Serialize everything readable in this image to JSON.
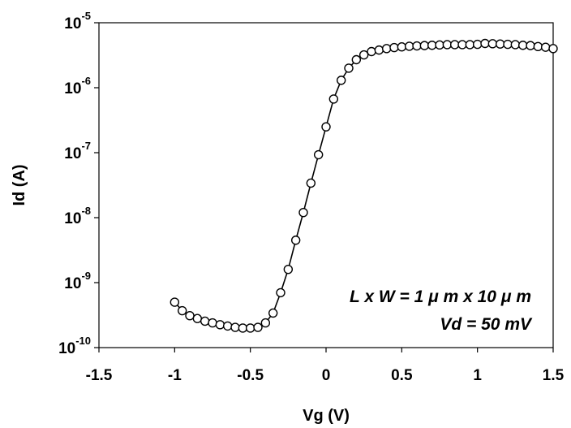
{
  "chart_data": {
    "type": "scatter",
    "xlabel": "Vg (V)",
    "ylabel": "Id (A)",
    "xlim": [
      -1.5,
      1.5
    ],
    "ylim": [
      1e-10,
      1e-05
    ],
    "y_scale": "log",
    "x_ticks": [
      "-1.5",
      "-1",
      "-0.5",
      "0",
      "0.5",
      "1",
      "1.5"
    ],
    "y_ticks": [
      {
        "base": "10",
        "exp": "-10"
      },
      {
        "base": "10",
        "exp": "-9"
      },
      {
        "base": "10",
        "exp": "-8"
      },
      {
        "base": "10",
        "exp": "-7"
      },
      {
        "base": "10",
        "exp": "-6"
      },
      {
        "base": "10",
        "exp": "-5"
      }
    ],
    "grid": false,
    "legend": "none",
    "annotations": [
      "L x W = 1 μ m x 10 μ m",
      "Vd = 50 mV"
    ],
    "marker": "open-circle",
    "line": "solid",
    "series": [
      {
        "x": [
          -1.0,
          -0.95,
          -0.9,
          -0.85,
          -0.8,
          -0.75,
          -0.7,
          -0.65,
          -0.6,
          -0.55,
          -0.5,
          -0.45,
          -0.4,
          -0.35,
          -0.3,
          -0.25,
          -0.2,
          -0.15,
          -0.1,
          -0.05,
          0.0,
          0.05,
          0.1,
          0.15,
          0.2,
          0.25,
          0.3,
          0.35,
          0.4,
          0.45,
          0.5,
          0.55,
          0.6,
          0.65,
          0.7,
          0.75,
          0.8,
          0.85,
          0.9,
          0.95,
          1.0,
          1.05,
          1.1,
          1.15,
          1.2,
          1.25,
          1.3,
          1.35,
          1.4,
          1.45,
          1.5
        ],
        "y": [
          5e-10,
          3.7e-10,
          3.1e-10,
          2.8e-10,
          2.55e-10,
          2.4e-10,
          2.25e-10,
          2.15e-10,
          2.05e-10,
          2e-10,
          2e-10,
          2.05e-10,
          2.4e-10,
          3.4e-10,
          7e-10,
          1.6e-09,
          4.5e-09,
          1.2e-08,
          3.4e-08,
          9.3e-08,
          2.5e-07,
          6.7e-07,
          1.3e-06,
          2e-06,
          2.7e-06,
          3.2e-06,
          3.6e-06,
          3.8e-06,
          4e-06,
          4.15e-06,
          4.25e-06,
          4.35e-06,
          4.4e-06,
          4.45e-06,
          4.5e-06,
          4.55e-06,
          4.6e-06,
          4.6e-06,
          4.6e-06,
          4.6e-06,
          4.65e-06,
          4.8e-06,
          4.75e-06,
          4.7e-06,
          4.65e-06,
          4.6e-06,
          4.5e-06,
          4.45e-06,
          4.3e-06,
          4.2e-06,
          4e-06
        ]
      }
    ]
  }
}
